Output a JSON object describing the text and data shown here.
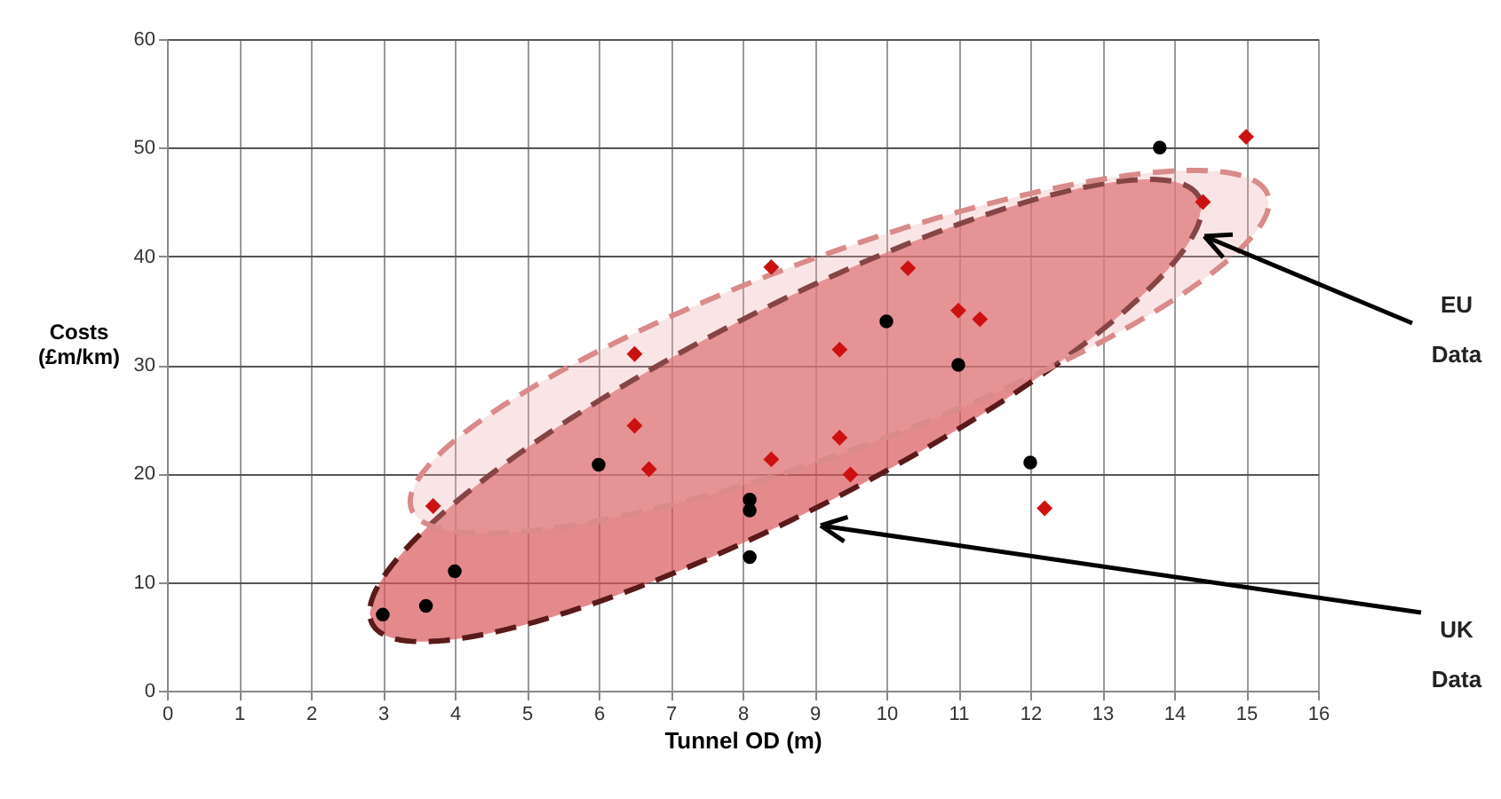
{
  "chart_data": {
    "type": "scatter",
    "xlabel": "Tunnel OD (m)",
    "ylabel": "Costs\n(£m/km)",
    "xlim": [
      0,
      16
    ],
    "xticks": [
      0,
      1,
      2,
      3,
      4,
      5,
      6,
      7,
      8,
      9,
      10,
      11,
      12,
      13,
      14,
      15,
      16
    ],
    "ylim": [
      0,
      60
    ],
    "yticks": [
      0,
      10,
      20,
      30,
      40,
      50,
      60
    ],
    "grid": true,
    "legend": false,
    "series": [
      {
        "color": "#000000",
        "marker": "circle",
        "x": [
          3,
          3.6,
          4,
          6,
          8.1,
          8.1,
          8.1,
          10,
          11,
          12,
          13.8
        ],
        "values": [
          7,
          7.8,
          11,
          20.8,
          17.6,
          16.6,
          12.3,
          34,
          30,
          21,
          50
        ]
      },
      {
        "color": "#cc1111",
        "marker": "diamond",
        "x": [
          3.7,
          6.5,
          6.5,
          6.7,
          8.4,
          8.4,
          9.35,
          9.35,
          9.5,
          10.3,
          11,
          11.3,
          12.2,
          14.4,
          15
        ],
        "values": [
          17,
          31,
          24.4,
          20.4,
          39,
          21.3,
          31.4,
          23.3,
          19.9,
          38.9,
          35,
          34.2,
          16.8,
          45,
          51
        ]
      }
    ],
    "annotations": [
      "EU\nData",
      "UK\nData"
    ]
  }
}
